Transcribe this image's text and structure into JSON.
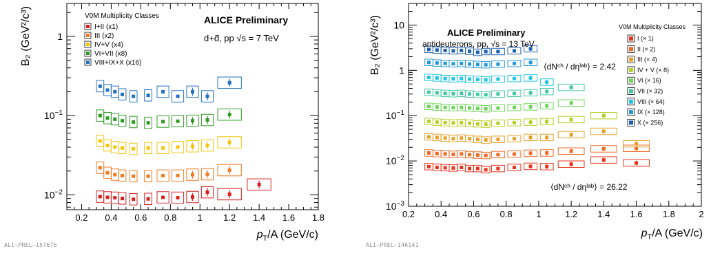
{
  "chart_data": [
    {
      "type": "scatter",
      "watermark": "ALI–PREL–157676",
      "prelim_label": "ALICE Preliminary",
      "system_label": "d+d̄, pp √s = 7 TeV",
      "legend_title": "V0M Multiplicity Classes",
      "ylabel": "B₂ (GeV²/c³)",
      "xlabel": "pₜ/A (GeV/c)",
      "xlim": [
        0.1,
        1.8
      ],
      "ylim": [
        0.0065,
        2.6
      ],
      "yscale": "log",
      "x_ticks": [
        "0.2",
        "0.4",
        "0.6",
        "0.8",
        "1",
        "1.2",
        "1.4",
        "1.6",
        "1.8"
      ],
      "y_ticks": [
        "10⁻²",
        "10⁻¹",
        "1"
      ],
      "legend_position": "top-left",
      "series": [
        {
          "name": "I+II (x1)",
          "color": "#d42020",
          "x": [
            0.325,
            0.375,
            0.425,
            0.475,
            0.55,
            0.65,
            0.75,
            0.85,
            0.95,
            1.05,
            1.2,
            1.4
          ],
          "y": [
            0.0095,
            0.0093,
            0.0092,
            0.009,
            0.0088,
            0.0089,
            0.0093,
            0.0092,
            0.0094,
            0.0108,
            0.0102,
            0.0135
          ]
        },
        {
          "name": "III (x2)",
          "color": "#f07a24",
          "x": [
            0.325,
            0.375,
            0.425,
            0.475,
            0.55,
            0.65,
            0.75,
            0.85,
            0.95,
            1.05,
            1.2
          ],
          "y": [
            0.022,
            0.019,
            0.018,
            0.0175,
            0.0172,
            0.0172,
            0.0175,
            0.0175,
            0.018,
            0.0182,
            0.0205
          ]
        },
        {
          "name": "IV+V (x4)",
          "color": "#f2c40c",
          "x": [
            0.325,
            0.375,
            0.425,
            0.475,
            0.55,
            0.65,
            0.75,
            0.85,
            0.95,
            1.05,
            1.2
          ],
          "y": [
            0.048,
            0.042,
            0.04,
            0.039,
            0.038,
            0.039,
            0.039,
            0.04,
            0.041,
            0.042,
            0.046
          ]
        },
        {
          "name": "VI+VII (x8)",
          "color": "#2e9a22",
          "x": [
            0.325,
            0.375,
            0.425,
            0.475,
            0.55,
            0.65,
            0.75,
            0.85,
            0.95,
            1.05,
            1.2
          ],
          "y": [
            0.1,
            0.093,
            0.09,
            0.086,
            0.083,
            0.081,
            0.084,
            0.085,
            0.086,
            0.088,
            0.103
          ]
        },
        {
          "name": "VIII+IX+X (x16)",
          "color": "#2270c0",
          "x": [
            0.325,
            0.375,
            0.425,
            0.475,
            0.55,
            0.65,
            0.75,
            0.85,
            0.95,
            1.05,
            1.2
          ],
          "y": [
            0.235,
            0.21,
            0.2,
            0.185,
            0.175,
            0.18,
            0.2,
            0.175,
            0.2,
            0.175,
            0.26
          ]
        }
      ]
    },
    {
      "type": "scatter",
      "watermark": "ALI–PREL–146141",
      "prelim_label": "ALICE Preliminary",
      "system_label": "antideuterons, pp, √s = 13 TeV",
      "legend_title": "V0M Multiplicity Classes",
      "ylabel": "B₂ (GeV²/c³)",
      "xlabel": "pₜ/A (GeV/c)",
      "xlim": [
        0.2,
        2.0
      ],
      "ylim": [
        0.001,
        30
      ],
      "yscale": "log",
      "x_ticks": [
        "0.2",
        "0.4",
        "0.6",
        "0.8",
        "1",
        "1.2",
        "1.4",
        "1.6",
        "1.8",
        "2"
      ],
      "y_ticks": [
        "10⁻³",
        "10⁻²",
        "10⁻¹",
        "1",
        "10"
      ],
      "legend_position": "top-right",
      "annotation_high": "⟨dNᶜʰ / dηˡᵃᵇ⟩ = 2.42",
      "annotation_low": "⟨dNᶜʰ / dηˡᵃᵇ⟩ = 26.22",
      "series": [
        {
          "name": "I (× 1)",
          "color": "#e8331c",
          "x": [
            0.325,
            0.375,
            0.425,
            0.475,
            0.525,
            0.575,
            0.625,
            0.675,
            0.75,
            0.85,
            0.95,
            1.05,
            1.2,
            1.4,
            1.6
          ],
          "y": [
            0.0075,
            0.0072,
            0.0071,
            0.007,
            0.0072,
            0.0068,
            0.0068,
            0.0064,
            0.0068,
            0.0072,
            0.0076,
            0.0075,
            0.0085,
            0.0105,
            0.009
          ]
        },
        {
          "name": "II (× 2)",
          "color": "#ed6a25",
          "x": [
            0.325,
            0.375,
            0.425,
            0.475,
            0.525,
            0.575,
            0.625,
            0.675,
            0.75,
            0.85,
            0.95,
            1.05,
            1.2,
            1.4,
            1.6
          ],
          "y": [
            0.015,
            0.0145,
            0.0143,
            0.014,
            0.0143,
            0.0138,
            0.0135,
            0.0132,
            0.0138,
            0.0142,
            0.0148,
            0.015,
            0.0165,
            0.0185,
            0.019
          ]
        },
        {
          "name": "III (× 4)",
          "color": "#e5a02a",
          "x": [
            0.325,
            0.375,
            0.425,
            0.475,
            0.525,
            0.575,
            0.625,
            0.675,
            0.75,
            0.85,
            0.95,
            1.05,
            1.2,
            1.4,
            1.6
          ],
          "y": [
            0.034,
            0.033,
            0.032,
            0.031,
            0.032,
            0.031,
            0.03,
            0.029,
            0.03,
            0.031,
            0.033,
            0.033,
            0.038,
            0.045,
            0.024
          ]
        },
        {
          "name": "IV + V (× 8)",
          "color": "#b6cf27",
          "x": [
            0.325,
            0.375,
            0.425,
            0.475,
            0.525,
            0.575,
            0.625,
            0.675,
            0.75,
            0.85,
            0.95,
            1.05,
            1.2,
            1.4
          ],
          "y": [
            0.075,
            0.072,
            0.07,
            0.069,
            0.07,
            0.068,
            0.066,
            0.065,
            0.068,
            0.07,
            0.072,
            0.074,
            0.082,
            0.1
          ]
        },
        {
          "name": "VI (× 16)",
          "color": "#6bd456",
          "x": [
            0.325,
            0.375,
            0.425,
            0.475,
            0.525,
            0.575,
            0.625,
            0.675,
            0.75,
            0.85,
            0.95,
            1.05,
            1.2
          ],
          "y": [
            0.16,
            0.155,
            0.152,
            0.15,
            0.152,
            0.148,
            0.145,
            0.142,
            0.147,
            0.152,
            0.156,
            0.165,
            0.19
          ]
        },
        {
          "name": "VII (× 32)",
          "color": "#43c7a2",
          "x": [
            0.325,
            0.375,
            0.425,
            0.475,
            0.525,
            0.575,
            0.625,
            0.675,
            0.75,
            0.85,
            0.95,
            1.05,
            1.2
          ],
          "y": [
            0.33,
            0.32,
            0.31,
            0.305,
            0.31,
            0.3,
            0.295,
            0.29,
            0.3,
            0.31,
            0.32,
            0.34,
            0.42
          ]
        },
        {
          "name": "VIII (× 64)",
          "color": "#1fc4e0",
          "x": [
            0.325,
            0.375,
            0.425,
            0.475,
            0.525,
            0.575,
            0.625,
            0.675,
            0.75,
            0.85,
            0.95,
            1.05
          ],
          "y": [
            0.7,
            0.68,
            0.66,
            0.65,
            0.66,
            0.64,
            0.63,
            0.62,
            0.64,
            0.66,
            0.68,
            0.55
          ]
        },
        {
          "name": "IX (× 128)",
          "color": "#2597d4",
          "x": [
            0.325,
            0.375,
            0.425,
            0.475,
            0.525,
            0.575,
            0.625,
            0.675,
            0.75,
            0.85,
            0.95
          ],
          "y": [
            1.5,
            1.45,
            1.42,
            1.4,
            1.42,
            1.38,
            1.35,
            1.33,
            1.37,
            1.42,
            1.5
          ]
        },
        {
          "name": "X (× 256)",
          "color": "#1c5fb0",
          "x": [
            0.325,
            0.375,
            0.425,
            0.475,
            0.525,
            0.575,
            0.625,
            0.675,
            0.75,
            0.85,
            0.95
          ],
          "y": [
            2.9,
            2.8,
            2.75,
            2.7,
            2.75,
            2.65,
            2.5,
            2.6,
            2.6,
            2.7,
            3.0
          ]
        }
      ]
    }
  ]
}
